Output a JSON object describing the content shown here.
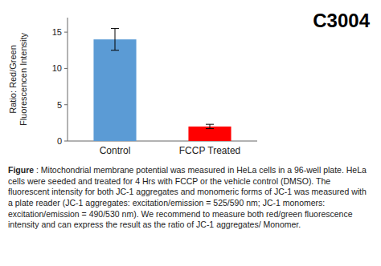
{
  "chart_data": {
    "type": "bar",
    "title": "C3004",
    "categories": [
      "Control",
      "FCCP Treated"
    ],
    "values": [
      14.0,
      2.0
    ],
    "errors": [
      1.5,
      0.3
    ],
    "colors": [
      "#5B9BD5",
      "#FF0000"
    ],
    "ylabel": "Ratio: Red/Green\nFluorescencen Intensity",
    "ylim": [
      0,
      17
    ],
    "yticks": [
      0,
      5,
      10,
      15
    ],
    "grid": false,
    "annotations": [
      "Figure",
      " : Mitochondrial membrane potential was measured in HeLa cells in a 96-well plate. HeLa cells were seeded and treated for 4 Hrs with FCCP or the vehicle control (DMSO). The fluorescent intensity for both JC-1 aggregates and monomeric forms of JC-1 was measured with a plate reader (JC-1 aggregates: excitation/emission = 525/590 nm; JC-1 monomers: excitation/emission = 490/530 nm). We recommend to measure both red/green fluorescence intensity and can express the result as the ratio of JC-1 aggregates/ Monomer."
    ]
  }
}
